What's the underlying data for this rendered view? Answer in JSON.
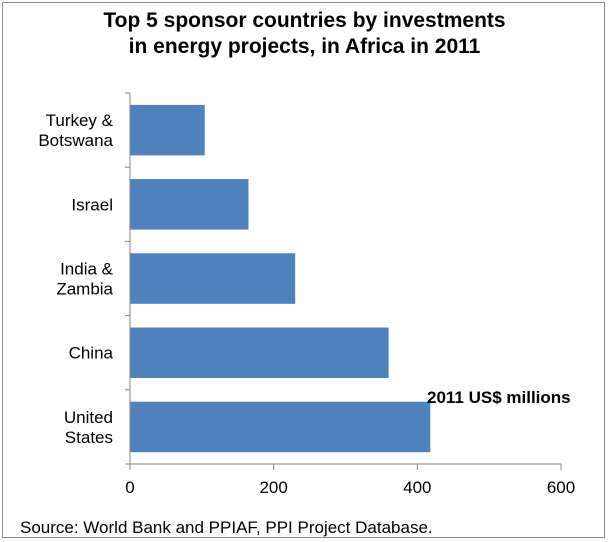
{
  "chart_data": {
    "type": "bar",
    "orientation": "horizontal",
    "title_lines": [
      "Top 5 sponsor countries by investments",
      "in energy projects, in Africa in 2011"
    ],
    "categories": [
      [
        "Turkey &",
        "Botswana"
      ],
      [
        "Israel"
      ],
      [
        "India &",
        "Zambia"
      ],
      [
        "China"
      ],
      [
        "United",
        "States"
      ]
    ],
    "values": [
      104,
      165,
      230,
      360,
      418
    ],
    "xlim": [
      0,
      600
    ],
    "xticks": [
      "0",
      "200",
      "400",
      "600"
    ],
    "unit_label": "2011 US$ millions",
    "bar_color": "#4f81bd",
    "grid": false,
    "legend": "none"
  },
  "source": "Source:  World Bank and PPIAF, PPI Project Database."
}
